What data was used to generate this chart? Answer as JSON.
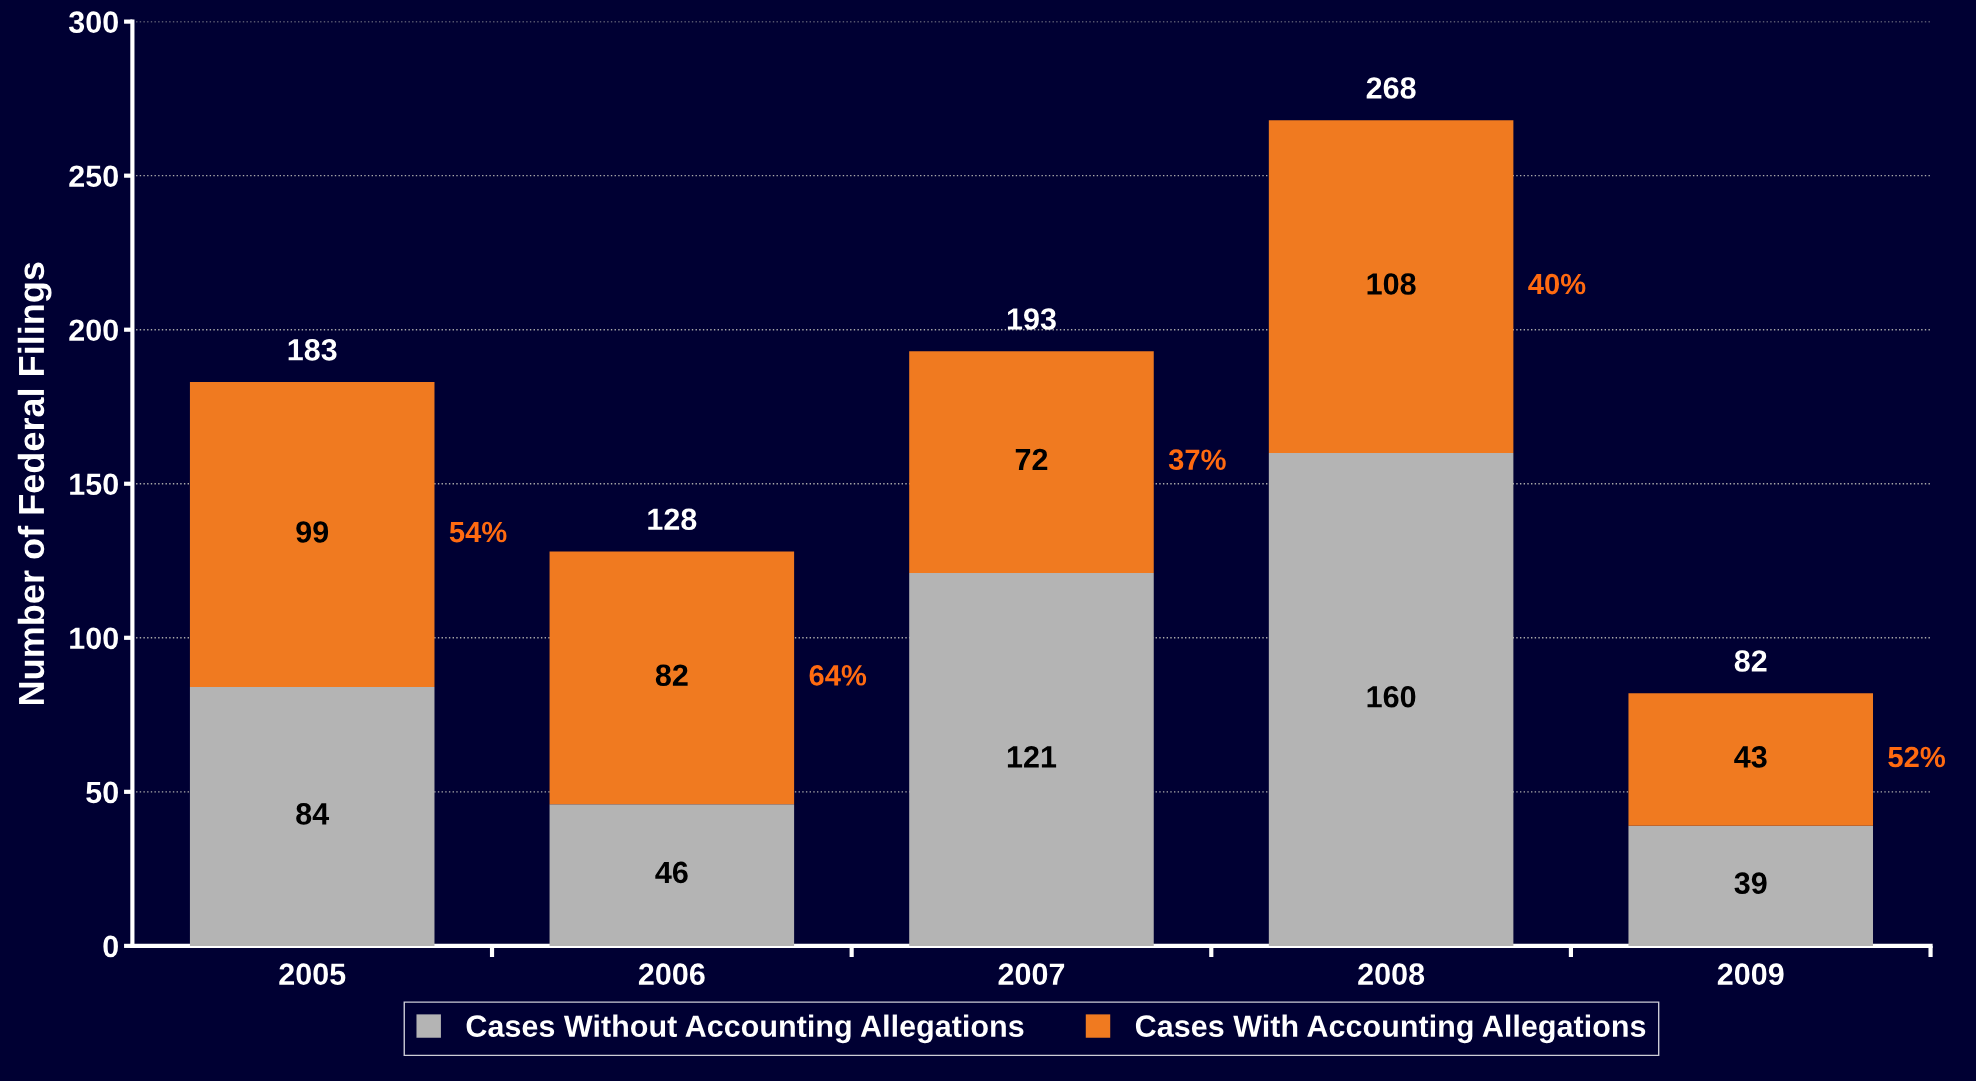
{
  "chart_data": {
    "type": "bar",
    "stacked": true,
    "ylabel": "Number of Federal Filings",
    "categories": [
      "2005",
      "2006",
      "2007",
      "2008",
      "2009"
    ],
    "series": [
      {
        "name": "Cases Without Accounting Allegations",
        "color": "#b4b4b4",
        "values": [
          84,
          46,
          121,
          160,
          39
        ]
      },
      {
        "name": "Cases With Accounting Allegations",
        "color": "#f07a20",
        "values": [
          99,
          82,
          72,
          108,
          43
        ]
      }
    ],
    "data_labels": true,
    "totals": [
      "183",
      "128",
      "193",
      "268",
      "82"
    ],
    "annotations": [
      "54%",
      "64%",
      "37%",
      "40%",
      "52%"
    ],
    "ylim": [
      0,
      300
    ],
    "yticks": [
      0,
      50,
      100,
      150,
      200,
      250,
      300
    ],
    "grid": "y",
    "legend": "bottom"
  }
}
